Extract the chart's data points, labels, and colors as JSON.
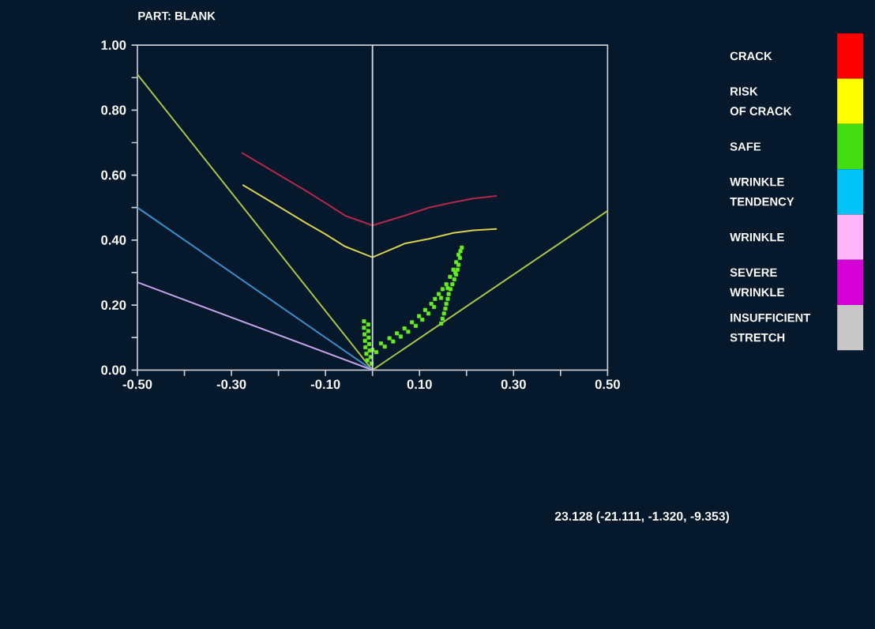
{
  "chart_data": [
    {
      "type": "line",
      "title": "PART: BLANK",
      "xlim": [
        -0.5,
        0.5
      ],
      "ylim": [
        0,
        1
      ],
      "xticks": [
        {
          "value": -0.5,
          "label": "-0.50"
        },
        {
          "value": -0.4,
          "label": null
        },
        {
          "value": -0.3,
          "label": "-0.30"
        },
        {
          "value": -0.2,
          "label": null
        },
        {
          "value": -0.1,
          "label": "-0.10"
        },
        {
          "value": 0,
          "label": null
        },
        {
          "value": 0.1,
          "label": "0.10"
        },
        {
          "value": 0.2,
          "label": null
        },
        {
          "value": 0.3,
          "label": "0.30"
        },
        {
          "value": 0.4,
          "label": null
        },
        {
          "value": 0.5,
          "label": "0.50"
        }
      ],
      "yticks": [
        {
          "value": 0,
          "label": "0.00"
        },
        {
          "value": 0.1,
          "label": null
        },
        {
          "value": 0.2,
          "label": "0.20"
        },
        {
          "value": 0.3,
          "label": null
        },
        {
          "value": 0.4,
          "label": "0.40"
        },
        {
          "value": 0.5,
          "label": null
        },
        {
          "value": 0.6,
          "label": "0.60"
        },
        {
          "value": 0.7,
          "label": null
        },
        {
          "value": 0.8,
          "label": "0.80"
        },
        {
          "value": 0.9,
          "label": null
        },
        {
          "value": 1,
          "label": "1.00"
        }
      ],
      "ref_lines": [
        {
          "axis": "x",
          "value": 0,
          "color": "#d4d8e0"
        }
      ],
      "annotations": [
        "23.128 (-21.111, -1.320, -9.353)"
      ],
      "series": [
        {
          "type": "line",
          "color": "#b0284c",
          "x": [
            -0.277,
            -0.2,
            -0.141,
            -0.1,
            -0.058,
            0,
            0.068,
            0.12,
            0.172,
            0.214,
            0.263
          ],
          "values": [
            0.668,
            0.602,
            0.551,
            0.514,
            0.475,
            0.445,
            0.475,
            0.5,
            0.516,
            0.528,
            0.536
          ]
        },
        {
          "type": "line",
          "color": "#d8d050",
          "x": [
            -0.275,
            -0.2,
            -0.141,
            -0.1,
            -0.058,
            0,
            0.068,
            0.12,
            0.172,
            0.214,
            0.263
          ],
          "values": [
            0.569,
            0.504,
            0.452,
            0.418,
            0.38,
            0.347,
            0.389,
            0.404,
            0.422,
            0.43,
            0.434
          ]
        },
        {
          "type": "line",
          "color": "#a8c048",
          "x": [
            -0.5,
            0,
            0.5
          ],
          "values": [
            0.91,
            0,
            0.49
          ]
        },
        {
          "type": "line",
          "color": "#3a8cc8",
          "x": [
            -0.5,
            0
          ],
          "values": [
            0.5,
            0
          ]
        },
        {
          "type": "line",
          "color": "#c0a0e0",
          "x": [
            -0.5,
            0
          ],
          "values": [
            0.27,
            0
          ]
        },
        {
          "type": "scatter",
          "color": "#66ee22",
          "marker": "square",
          "x": [
            -0.018,
            -0.018,
            -0.017,
            -0.016,
            -0.015,
            -0.013,
            -0.011,
            -0.009,
            -0.009,
            -0.008,
            -0.007,
            -0.006,
            -0.004,
            -0.002,
            0.0,
            0.018,
            0.036,
            0.052,
            0.068,
            0.084,
            0.099,
            0.112,
            0.125,
            0.133,
            0.141,
            0.149,
            0.157,
            0.165,
            0.172,
            0.178,
            0.183,
            0.187,
            0.19,
            0.008,
            0.026,
            0.044,
            0.06,
            0.076,
            0.092,
            0.106,
            0.119,
            0.131,
            0.146,
            0.16,
            0.176,
            0.186,
            0.146,
            0.149,
            0.152,
            0.155,
            0.157,
            0.16,
            0.162,
            0.166,
            0.17,
            0.174,
            0.178,
            0.181,
            0.183
          ],
          "values": [
            0.15,
            0.13,
            0.11,
            0.09,
            0.07,
            0.05,
            0.03,
            0.14,
            0.12,
            0.1,
            0.08,
            0.06,
            0.04,
            0.02,
            0.062,
            0.082,
            0.098,
            0.113,
            0.128,
            0.147,
            0.166,
            0.185,
            0.204,
            0.219,
            0.234,
            0.249,
            0.264,
            0.287,
            0.309,
            0.332,
            0.355,
            0.366,
            0.377,
            0.055,
            0.072,
            0.088,
            0.103,
            0.118,
            0.136,
            0.155,
            0.174,
            0.194,
            0.222,
            0.252,
            0.3,
            0.345,
            0.143,
            0.158,
            0.174,
            0.189,
            0.204,
            0.219,
            0.234,
            0.249,
            0.264,
            0.279,
            0.294,
            0.309,
            0.324
          ]
        }
      ]
    },
    {
      "type": "other",
      "categories": [
        "CRACK",
        "RISK OF CRACK",
        "SAFE",
        "WRINKLE TENDENCY",
        "WRINKLE",
        "SEVERE WRINKLE",
        "INSUFFICIENT STRETCH"
      ],
      "colors": [
        "#ff0000",
        "#ffff00",
        "#44dd11",
        "#00c4f4",
        "#ffb4f8",
        "#d400d4",
        "#c8c8c8"
      ]
    }
  ]
}
